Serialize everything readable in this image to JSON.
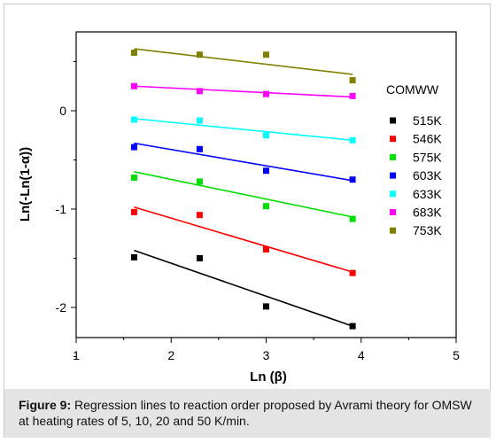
{
  "chart_data": {
    "type": "scatter",
    "xlabel": "Ln (β)",
    "ylabel": "Ln(-Ln(1-α))",
    "xlim": [
      1,
      5
    ],
    "ylim": [
      -2.3,
      0.75
    ],
    "xticks": [
      1,
      2,
      3,
      4,
      5
    ],
    "yticks": [
      0,
      -1,
      -2
    ],
    "grid": false,
    "legend": {
      "title": "COMWW",
      "position": "right"
    },
    "x": [
      1.61,
      2.3,
      3.0,
      3.91
    ],
    "series": [
      {
        "name": "515K",
        "color": "#000000",
        "values": [
          -1.49,
          -1.5,
          -1.99,
          -2.19
        ],
        "fit": [
          [
            1.61,
            -1.42
          ],
          [
            3.91,
            -2.19
          ]
        ]
      },
      {
        "name": "546K",
        "color": "#ff0000",
        "values": [
          -1.03,
          -1.06,
          -1.41,
          -1.65
        ],
        "fit": [
          [
            1.61,
            -0.98
          ],
          [
            3.91,
            -1.64
          ]
        ]
      },
      {
        "name": "575K",
        "color": "#00e000",
        "values": [
          -0.68,
          -0.72,
          -0.97,
          -1.1
        ],
        "fit": [
          [
            1.61,
            -0.62
          ],
          [
            3.91,
            -1.08
          ]
        ]
      },
      {
        "name": "603K",
        "color": "#0000ff",
        "values": [
          -0.37,
          -0.39,
          -0.61,
          -0.7
        ],
        "fit": [
          [
            1.61,
            -0.33
          ],
          [
            3.91,
            -0.71
          ]
        ]
      },
      {
        "name": "633K",
        "color": "#00ffff",
        "values": [
          -0.09,
          -0.1,
          -0.25,
          -0.3
        ],
        "fit": [
          [
            1.61,
            -0.08
          ],
          [
            3.91,
            -0.3
          ]
        ]
      },
      {
        "name": "683K",
        "color": "#ff00ff",
        "values": [
          0.25,
          0.2,
          0.17,
          0.15
        ],
        "fit": [
          [
            1.61,
            0.25
          ],
          [
            3.91,
            0.14
          ]
        ]
      },
      {
        "name": "753K",
        "color": "#808000",
        "values": [
          0.59,
          0.57,
          0.57,
          0.31
        ],
        "fit": [
          [
            1.61,
            0.63
          ],
          [
            3.91,
            0.37
          ]
        ]
      }
    ]
  },
  "caption": {
    "label": "Figure 9:",
    "text": " Regression lines to reaction order proposed by Avrami theory for OMSW at heating rates of 5, 10, 20 and 50 K/min."
  }
}
